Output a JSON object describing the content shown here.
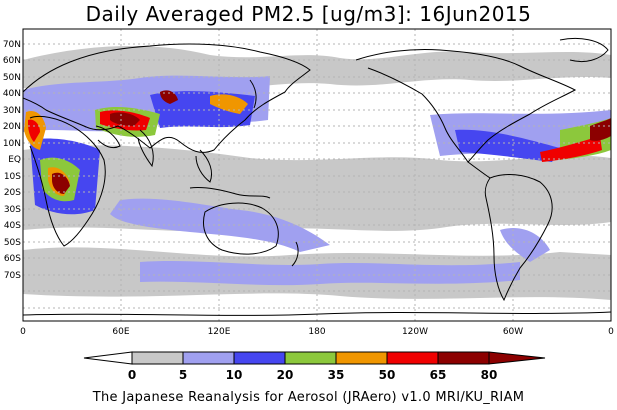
{
  "title": "Daily Averaged PM2.5 [ug/m3]: 16Jun2015",
  "subtitle": "The Japanese Reanalysis for Aerosol (JRAero) v1.0 MRI/KU_RIAM",
  "lat_labels": [
    "70N",
    "60N",
    "50N",
    "40N",
    "30N",
    "20N",
    "10N",
    "EQ",
    "10S",
    "20S",
    "30S",
    "40S",
    "50S",
    "60S",
    "70S"
  ],
  "lon_labels": [
    "0",
    "60E",
    "120E",
    "180",
    "120W",
    "60W",
    "0"
  ],
  "colorbar": {
    "labels": [
      "0",
      "5",
      "10",
      "20",
      "35",
      "50",
      "65",
      "80"
    ],
    "colors": [
      "#ffffff",
      "#c8c8c8",
      "#a0a0f0",
      "#4646f0",
      "#8cc83c",
      "#f09600",
      "#f00000",
      "#8c0000"
    ]
  },
  "map_colors": {
    "ocean": "#ffffff",
    "coast": "#000000",
    "grid": "#b4b4b4"
  }
}
